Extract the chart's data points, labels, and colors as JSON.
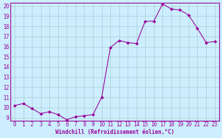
{
  "x": [
    0,
    1,
    2,
    3,
    4,
    5,
    6,
    7,
    8,
    9,
    10,
    11,
    12,
    13,
    14,
    15,
    16,
    17,
    18,
    19,
    20,
    21,
    22,
    23
  ],
  "y": [
    10.2,
    10.4,
    9.9,
    9.4,
    9.6,
    9.3,
    8.8,
    9.1,
    9.2,
    9.3,
    11.0,
    15.9,
    16.6,
    16.4,
    16.3,
    18.5,
    18.5,
    20.2,
    19.7,
    19.6,
    19.1,
    17.8,
    16.4,
    16.5
  ],
  "line_color": "#990099",
  "marker": "D",
  "marker_size": 2.0,
  "bg_color": "#cceeff",
  "grid_color": "#aacccc",
  "xlabel": "Windchill (Refroidissement éolien,°C)",
  "ylim_min": 9,
  "ylim_max": 20,
  "xlim_min": 0,
  "xlim_max": 23,
  "yticks": [
    9,
    10,
    11,
    12,
    13,
    14,
    15,
    16,
    17,
    18,
    19,
    20
  ],
  "xticks": [
    0,
    1,
    2,
    3,
    4,
    5,
    6,
    7,
    8,
    9,
    10,
    11,
    12,
    13,
    14,
    15,
    16,
    17,
    18,
    19,
    20,
    21,
    22,
    23
  ],
  "tick_fontsize": 5.5,
  "xlabel_fontsize": 5.5
}
